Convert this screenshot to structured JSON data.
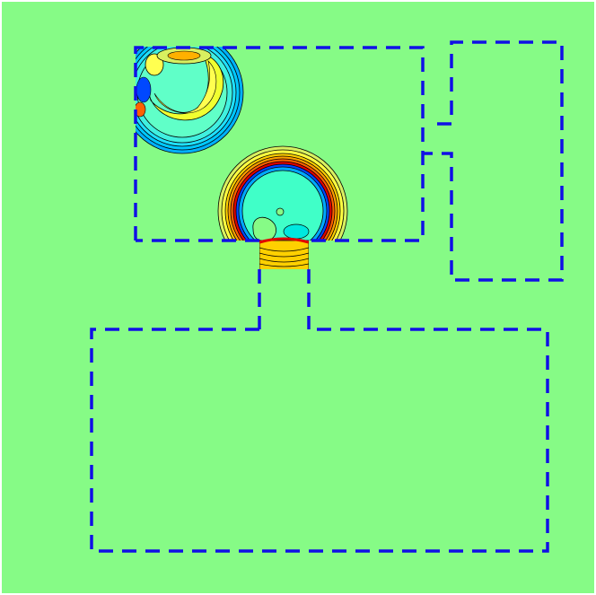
{
  "figure": {
    "kind": "contour-field",
    "background_color": "#86fb86",
    "wall_color": "#1010e6",
    "wall_style": "dashed",
    "contour_line_color": "#000000",
    "colormap": "jet",
    "contour_fill_colors": [
      "#0a0aa8",
      "#0048ff",
      "#00a8ff",
      "#00e8e0",
      "#40ffc8",
      "#86fb86",
      "#d8f060",
      "#ffff40",
      "#ffb000",
      "#ff6000",
      "#e00000",
      "#900000"
    ],
    "regions": [
      {
        "name": "upper-left-room"
      },
      {
        "name": "upper-right-room"
      },
      {
        "name": "connecting-corridor"
      },
      {
        "name": "lower-room"
      }
    ],
    "wave_sources": [
      {
        "name": "corner-wave",
        "ring_count": 7
      },
      {
        "name": "corridor-wave",
        "ring_count": 9
      }
    ]
  }
}
